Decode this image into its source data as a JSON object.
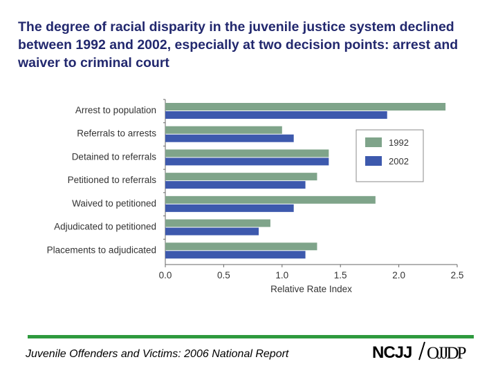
{
  "slide": {
    "title": "The degree of racial disparity in the juvenile justice system declined between 1992 and 2002, especially at two decision points: arrest and waiver to criminal court",
    "footer": "Juvenile Offenders and Victims: 2006 National Report"
  },
  "logo": {
    "left_text": "NCJJ",
    "right_text": "OJJDP"
  },
  "colors": {
    "series_1992": "#7fa48a",
    "series_2002": "#3d59ad",
    "axis": "#666666",
    "footer_rule": "#2e9a3e"
  },
  "chart_data": {
    "type": "bar",
    "orientation": "horizontal",
    "categories": [
      "Arrest to population",
      "Referrals to arrests",
      "Detained to referrals",
      "Petitioned to referrals",
      "Waived to petitioned",
      "Adjudicated to petitioned",
      "Placements to adjudicated"
    ],
    "series": [
      {
        "name": "1992",
        "values": [
          2.4,
          1.0,
          1.4,
          1.3,
          1.8,
          0.9,
          1.3
        ]
      },
      {
        "name": "2002",
        "values": [
          1.9,
          1.1,
          1.4,
          1.2,
          1.1,
          0.8,
          1.2
        ]
      }
    ],
    "xlabel": "Relative Rate Index",
    "ylabel": "",
    "xlim": [
      0,
      2.5
    ],
    "xticks": [
      "0.0",
      "0.5",
      "1.0",
      "1.5",
      "2.0",
      "2.5"
    ],
    "grid": false,
    "legend_position": "right"
  }
}
